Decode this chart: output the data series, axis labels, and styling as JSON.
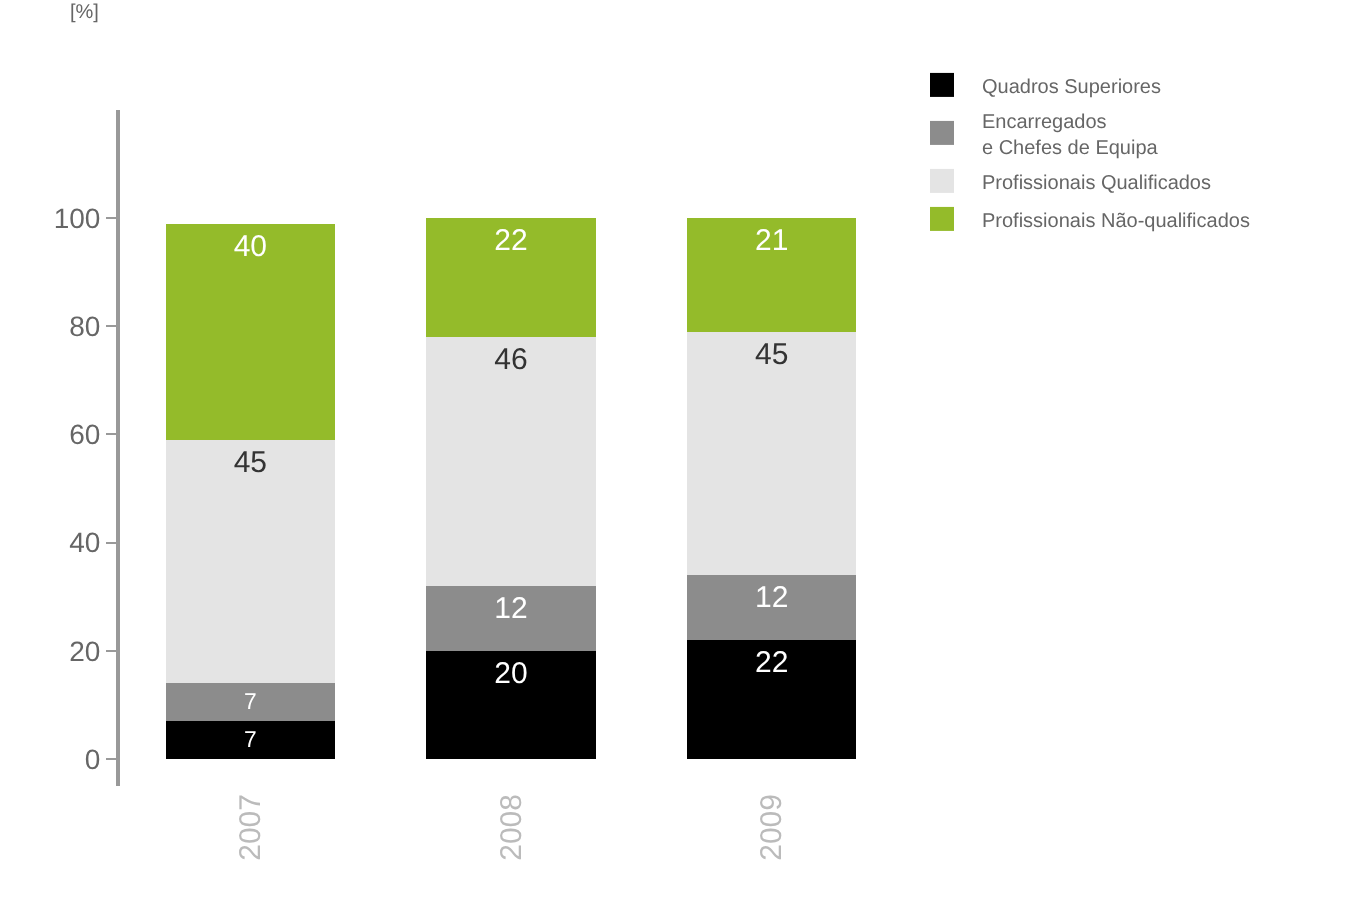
{
  "chart_data": {
    "type": "bar",
    "stacked": true,
    "ylabel": "[%]",
    "categories": [
      "2007",
      "2008",
      "2009"
    ],
    "series": [
      {
        "name": "Quadros Superiores",
        "color": "#000000",
        "values": [
          7,
          20,
          22
        ]
      },
      {
        "name": "Encarregados\ne Chefes de Equipa",
        "color": "#8c8c8c",
        "values": [
          7,
          12,
          12
        ]
      },
      {
        "name": "Profissionais Qualificados",
        "color": "#e4e4e4",
        "values": [
          45,
          46,
          45
        ]
      },
      {
        "name": "Profissionais Não-qualificados",
        "color": "#94bb2a",
        "values": [
          40,
          22,
          21
        ]
      }
    ],
    "ylim": [
      -5,
      120
    ],
    "yticks": [
      0,
      20,
      40,
      60,
      80,
      100
    ],
    "grid": false,
    "legend": "top right",
    "data_labels": true
  }
}
